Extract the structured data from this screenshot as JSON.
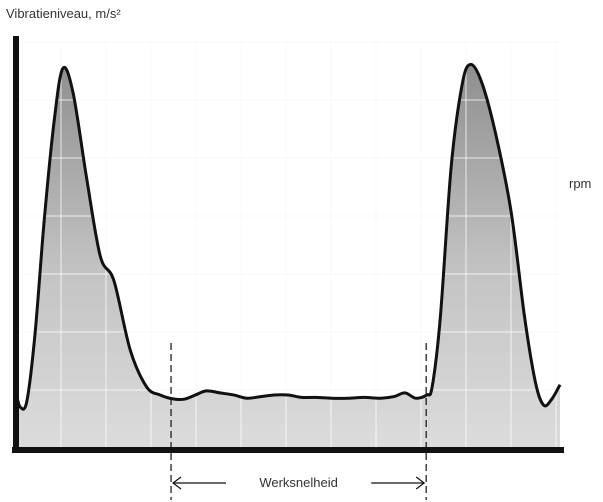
{
  "chart_data": {
    "type": "area",
    "title": "",
    "ylabel": "Vibratieniveau, m/s²",
    "xlabel": "rpm",
    "band_label": "Werksnelheid",
    "x_range": [
      0,
      100
    ],
    "y_range": [
      0,
      10
    ],
    "grid": true,
    "fill_color": "#d8d8d8",
    "peak_color": "#8f8f8f",
    "line_color": "#111111",
    "band": {
      "start": 28.5,
      "end": 75.4
    },
    "series": [
      {
        "values": [
          [
            0.0,
            1.35
          ],
          [
            0.8,
            1.0
          ],
          [
            2.0,
            1.15
          ],
          [
            3.5,
            2.8
          ],
          [
            5.2,
            5.6
          ],
          [
            7.0,
            8.0
          ],
          [
            8.6,
            9.3
          ],
          [
            10.5,
            8.7
          ],
          [
            13.0,
            6.6
          ],
          [
            15.5,
            4.7
          ],
          [
            18.0,
            4.1
          ],
          [
            21.0,
            2.4
          ],
          [
            24.0,
            1.5
          ],
          [
            26.5,
            1.3
          ],
          [
            29.0,
            1.2
          ],
          [
            31.0,
            1.2
          ],
          [
            33.0,
            1.3
          ],
          [
            35.0,
            1.4
          ],
          [
            37.5,
            1.35
          ],
          [
            40.0,
            1.3
          ],
          [
            42.5,
            1.22
          ],
          [
            45.0,
            1.26
          ],
          [
            47.5,
            1.3
          ],
          [
            50.0,
            1.3
          ],
          [
            52.5,
            1.24
          ],
          [
            55.0,
            1.24
          ],
          [
            58.0,
            1.22
          ],
          [
            61.0,
            1.22
          ],
          [
            64.0,
            1.24
          ],
          [
            67.0,
            1.22
          ],
          [
            69.5,
            1.26
          ],
          [
            71.5,
            1.35
          ],
          [
            73.5,
            1.22
          ],
          [
            75.5,
            1.3
          ],
          [
            76.5,
            1.5
          ],
          [
            78.0,
            3.2
          ],
          [
            80.0,
            6.9
          ],
          [
            82.0,
            8.9
          ],
          [
            83.5,
            9.4
          ],
          [
            85.5,
            9.0
          ],
          [
            88.0,
            7.8
          ],
          [
            91.0,
            5.8
          ],
          [
            93.5,
            3.2
          ],
          [
            95.5,
            1.6
          ],
          [
            97.0,
            1.05
          ],
          [
            98.5,
            1.2
          ],
          [
            100.0,
            1.55
          ]
        ]
      }
    ]
  }
}
